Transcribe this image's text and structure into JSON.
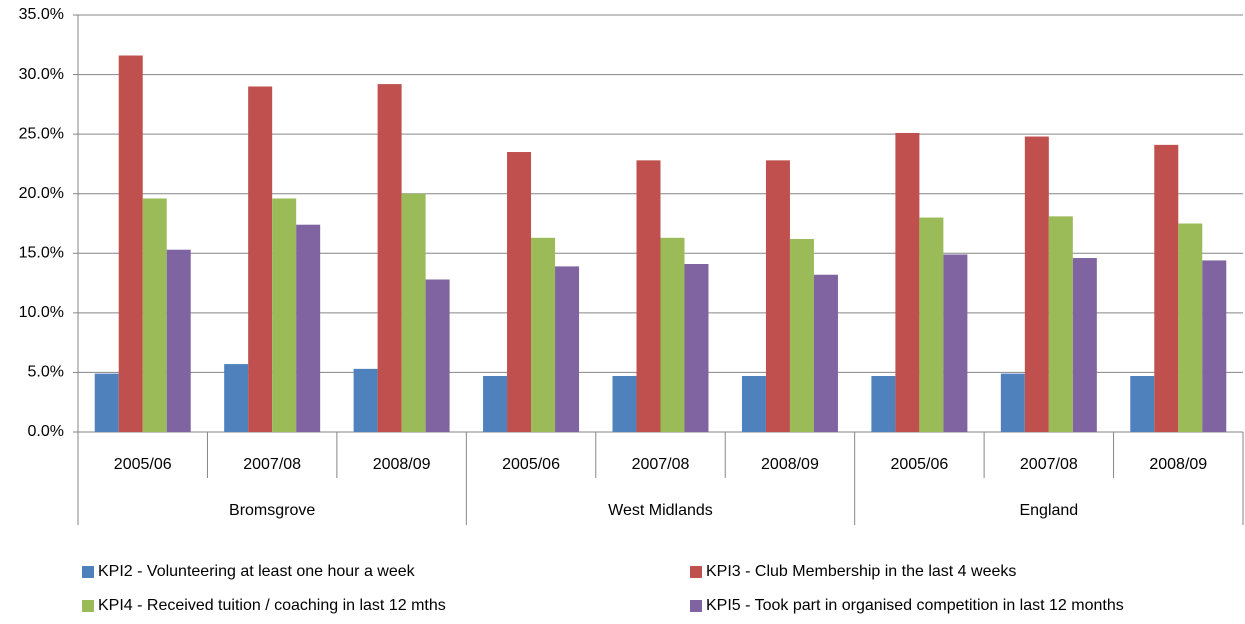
{
  "chart_data": {
    "type": "bar",
    "categories": [
      "2005/06",
      "2007/08",
      "2008/09",
      "2005/06",
      "2007/08",
      "2008/09",
      "2005/06",
      "2007/08",
      "2008/09"
    ],
    "groups": [
      "Bromsgrove",
      "West Midlands",
      "England"
    ],
    "series": [
      {
        "name": "KPI2 - Volunteering at least one hour a week",
        "color": "#4f81bd",
        "values": [
          4.9,
          5.7,
          5.3,
          4.7,
          4.7,
          4.7,
          4.7,
          4.9,
          4.7
        ]
      },
      {
        "name": "KPI3 - Club Membership in the last 4 weeks",
        "color": "#c0504d",
        "values": [
          31.6,
          29.0,
          29.2,
          23.5,
          22.8,
          22.8,
          25.1,
          24.8,
          24.1
        ]
      },
      {
        "name": "KPI4 - Received tuition / coaching in last 12 mths",
        "color": "#9bbb59",
        "values": [
          19.6,
          19.6,
          20.0,
          16.3,
          16.3,
          16.2,
          18.0,
          18.1,
          17.5
        ]
      },
      {
        "name": "KPI5 - Took part in organised competition in last 12 months",
        "color": "#8064a2",
        "values": [
          15.3,
          17.4,
          12.8,
          13.9,
          14.1,
          13.2,
          14.9,
          14.6,
          14.4
        ]
      }
    ],
    "ylim": [
      0,
      35
    ],
    "yticks": [
      {
        "value": 0,
        "label": "0.0%"
      },
      {
        "value": 5,
        "label": "5.0%"
      },
      {
        "value": 10,
        "label": "10.0%"
      },
      {
        "value": 15,
        "label": "15.0%"
      },
      {
        "value": 20,
        "label": "20.0%"
      },
      {
        "value": 25,
        "label": "25.0%"
      },
      {
        "value": 30,
        "label": "30.0%"
      },
      {
        "value": 35,
        "label": "35.0%"
      }
    ],
    "grid": true
  }
}
